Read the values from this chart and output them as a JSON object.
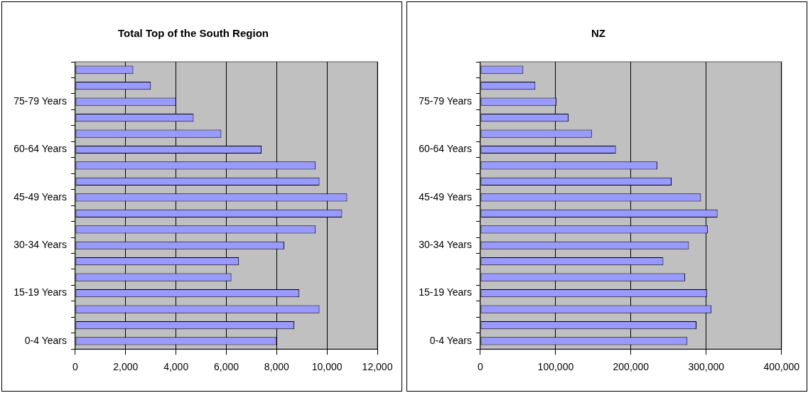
{
  "chart_data": [
    {
      "type": "bar",
      "orientation": "horizontal",
      "title": "Total Top of the South Region",
      "categories": [
        null,
        null,
        "75-79 Years",
        null,
        null,
        "60-64 Years",
        null,
        null,
        "45-49 Years",
        null,
        null,
        "30-34 Years",
        null,
        null,
        "15-19 Years",
        null,
        null,
        "0-4 Years"
      ],
      "values": [
        2300,
        3000,
        4000,
        4700,
        5800,
        7400,
        9550,
        9700,
        10800,
        10600,
        9550,
        8300,
        6500,
        6200,
        8900,
        9700,
        8700,
        8000
      ],
      "color": "#9999ff",
      "xlim": [
        0,
        12000
      ],
      "xticks": [
        {
          "value": 0,
          "label": "0"
        },
        {
          "value": 2000,
          "label": "2,000"
        },
        {
          "value": 4000,
          "label": "4,000"
        },
        {
          "value": 6000,
          "label": "6,000"
        },
        {
          "value": 8000,
          "label": "8,000"
        },
        {
          "value": 10000,
          "label": "10,000"
        },
        {
          "value": 12000,
          "label": "12,000"
        }
      ],
      "grid": "x"
    },
    {
      "type": "bar",
      "orientation": "horizontal",
      "title": "NZ",
      "categories": [
        null,
        null,
        "75-79 Years",
        null,
        null,
        "60-64 Years",
        null,
        null,
        "45-49 Years",
        null,
        null,
        "30-34 Years",
        null,
        null,
        "15-19 Years",
        null,
        null,
        "0-4 Years"
      ],
      "values": [
        57000,
        73000,
        101000,
        117000,
        148000,
        180000,
        235000,
        254000,
        293000,
        315000,
        302000,
        277000,
        243000,
        272000,
        301000,
        307000,
        287000,
        275000
      ],
      "color": "#9999ff",
      "xlim": [
        0,
        400000
      ],
      "xticks": [
        {
          "value": 0,
          "label": "0"
        },
        {
          "value": 100000,
          "label": "100,000"
        },
        {
          "value": 200000,
          "label": "200,000"
        },
        {
          "value": 300000,
          "label": "300,000"
        },
        {
          "value": 400000,
          "label": "400,000"
        }
      ],
      "grid": "x"
    }
  ]
}
